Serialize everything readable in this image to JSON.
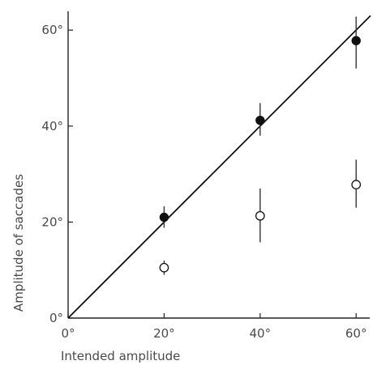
{
  "chart_data": {
    "type": "scatter",
    "title": "",
    "xlabel": "Intended amplitude",
    "ylabel": "Amplitude of saccades",
    "xlim": [
      0,
      63
    ],
    "ylim": [
      0,
      65
    ],
    "x_ticks": [
      0,
      20,
      40,
      60
    ],
    "x_tick_labels": [
      "0°",
      "20°",
      "40°",
      "60°"
    ],
    "y_ticks": [
      0,
      20,
      40,
      60
    ],
    "y_tick_labels": [
      "0°",
      "20°",
      "40°",
      "60°"
    ],
    "grid": false,
    "legend": "none",
    "reference_line": {
      "x": [
        0,
        63
      ],
      "y": [
        0,
        63
      ]
    },
    "series": [
      {
        "marker": "filled-circle",
        "color": "#111111",
        "x": [
          20,
          40,
          60
        ],
        "y": [
          21,
          41.2,
          57.8
        ],
        "err_low": [
          18.8,
          38,
          52
        ],
        "err_high": [
          23.3,
          44.8,
          62.8
        ]
      },
      {
        "marker": "open-circle",
        "color": "#111111",
        "x": [
          20,
          40,
          60
        ],
        "y": [
          10.5,
          21.3,
          27.8
        ],
        "err_low": [
          9,
          15.8,
          23
        ],
        "err_high": [
          12,
          27,
          33
        ]
      }
    ]
  }
}
